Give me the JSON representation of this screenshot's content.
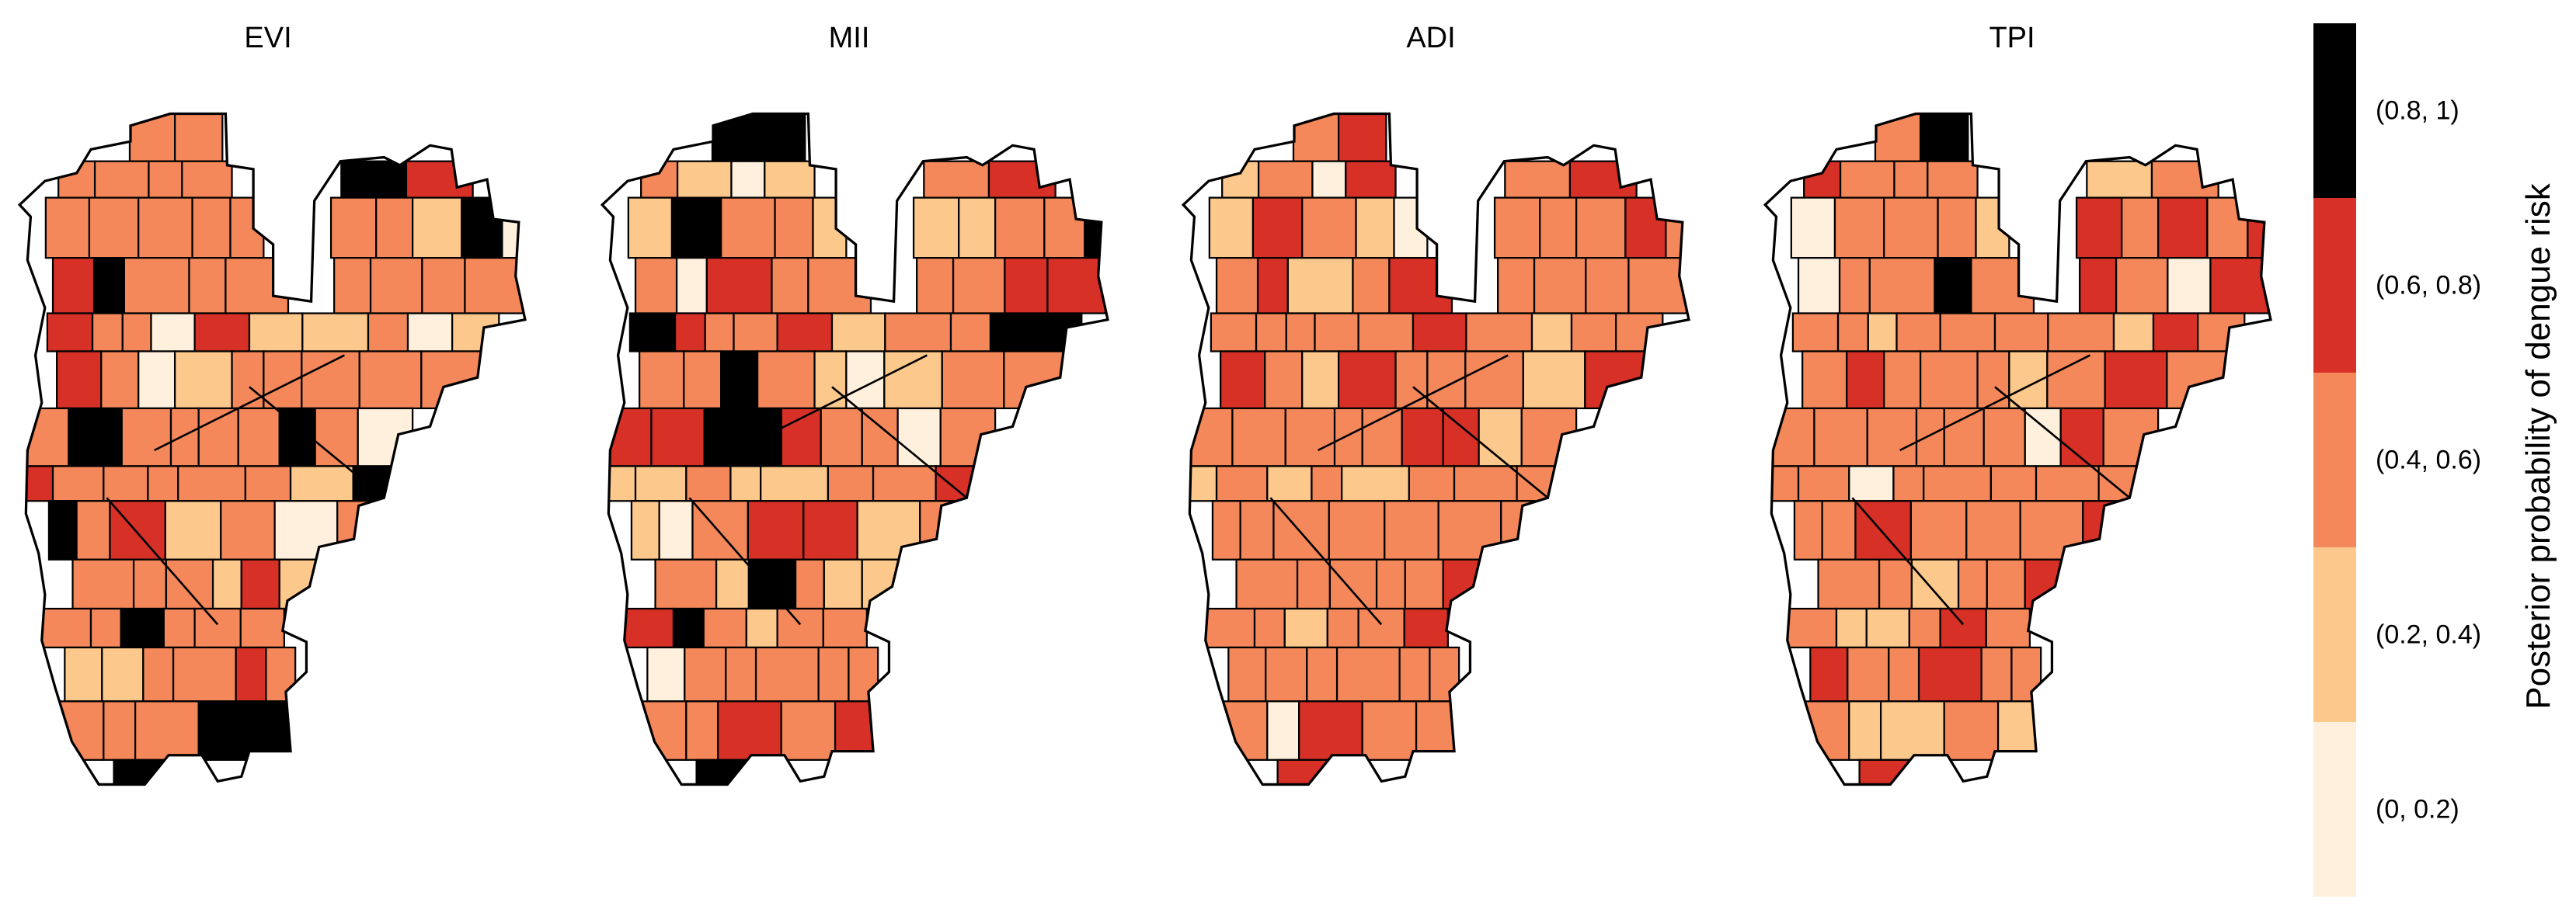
{
  "panels": [
    {
      "title": "EVI",
      "seed": 11,
      "black": 12,
      "red": 10,
      "orange": 62,
      "light": 12,
      "pale": 7
    },
    {
      "title": "MII",
      "seed": 23,
      "black": 14,
      "red": 16,
      "orange": 44,
      "light": 20,
      "pale": 6
    },
    {
      "title": "ADI",
      "seed": 37,
      "black": 0,
      "red": 18,
      "orange": 66,
      "light": 13,
      "pale": 3
    },
    {
      "title": "TPI",
      "seed": 53,
      "black": 2,
      "red": 18,
      "orange": 63,
      "light": 12,
      "pale": 5
    }
  ],
  "legend": {
    "title": "Posterior probability of dengue risk",
    "classes": [
      {
        "label": "(0.8, 1)",
        "color": "#000000"
      },
      {
        "label": "(0.6, 0.8)",
        "color": "#d73027"
      },
      {
        "label": "(0.4, 0.6)",
        "color": "#f4885a"
      },
      {
        "label": "(0.2, 0.4)",
        "color": "#fdc88c"
      },
      {
        "label": "(0, 0.2)",
        "color": "#fef0dc"
      }
    ]
  }
}
